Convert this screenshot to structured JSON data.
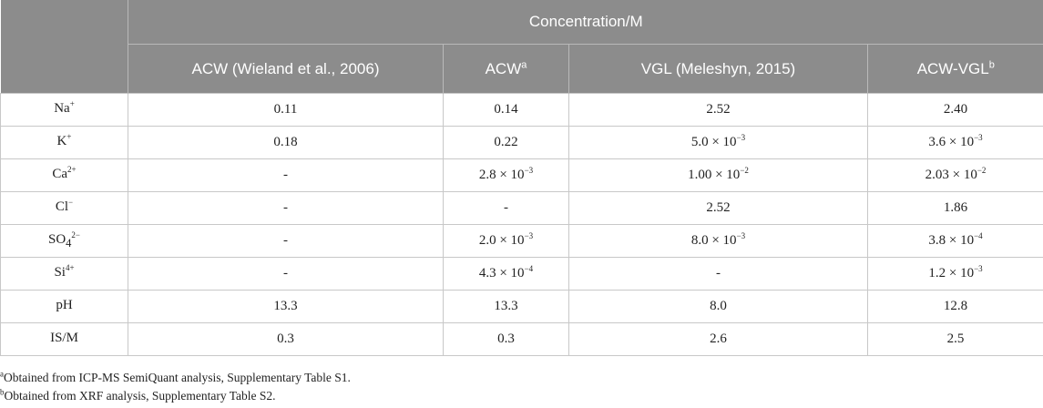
{
  "header": {
    "group_label": "Concentration/M",
    "columns": [
      {
        "label": "ACW (Wieland et al., 2006)",
        "sup": ""
      },
      {
        "label": "ACW",
        "sup": "a"
      },
      {
        "label": "VGL (Meleshyn, 2015)",
        "sup": ""
      },
      {
        "label": "ACW-VGL",
        "sup": "b"
      }
    ]
  },
  "rows": [
    {
      "stub": {
        "base": "Na",
        "sup": "+",
        "sub": "",
        "sup2": ""
      },
      "cells": [
        {
          "text": "0.11",
          "exp": ""
        },
        {
          "text": "0.14",
          "exp": ""
        },
        {
          "text": "2.52",
          "exp": ""
        },
        {
          "text": "2.40",
          "exp": ""
        }
      ]
    },
    {
      "stub": {
        "base": "K",
        "sup": "+",
        "sub": "",
        "sup2": ""
      },
      "cells": [
        {
          "text": "0.18",
          "exp": ""
        },
        {
          "text": "0.22",
          "exp": ""
        },
        {
          "text": "5.0 × 10",
          "exp": "−3"
        },
        {
          "text": "3.6 × 10",
          "exp": "−3"
        }
      ]
    },
    {
      "stub": {
        "base": "Ca",
        "sup": "2+",
        "sub": "",
        "sup2": ""
      },
      "cells": [
        {
          "text": "-",
          "exp": ""
        },
        {
          "text": "2.8 × 10",
          "exp": "−3"
        },
        {
          "text": "1.00 × 10",
          "exp": "−2"
        },
        {
          "text": "2.03 × 10",
          "exp": "−2"
        }
      ]
    },
    {
      "stub": {
        "base": "Cl",
        "sup": "−",
        "sub": "",
        "sup2": ""
      },
      "cells": [
        {
          "text": "-",
          "exp": ""
        },
        {
          "text": "-",
          "exp": ""
        },
        {
          "text": "2.52",
          "exp": ""
        },
        {
          "text": "1.86",
          "exp": ""
        }
      ]
    },
    {
      "stub": {
        "base": "SO",
        "sup": "",
        "sub": "4",
        "sup2": "2−"
      },
      "cells": [
        {
          "text": "-",
          "exp": ""
        },
        {
          "text": "2.0 × 10",
          "exp": "−3"
        },
        {
          "text": "8.0 × 10",
          "exp": "−3"
        },
        {
          "text": "3.8 × 10",
          "exp": "−4"
        }
      ]
    },
    {
      "stub": {
        "base": "Si",
        "sup": "4+",
        "sub": "",
        "sup2": ""
      },
      "cells": [
        {
          "text": "-",
          "exp": ""
        },
        {
          "text": "4.3 × 10",
          "exp": "−4"
        },
        {
          "text": "-",
          "exp": ""
        },
        {
          "text": "1.2 × 10",
          "exp": "−3"
        }
      ]
    },
    {
      "stub": {
        "base": "pH",
        "sup": "",
        "sub": "",
        "sup2": ""
      },
      "cells": [
        {
          "text": "13.3",
          "exp": ""
        },
        {
          "text": "13.3",
          "exp": ""
        },
        {
          "text": "8.0",
          "exp": ""
        },
        {
          "text": "12.8",
          "exp": ""
        }
      ]
    },
    {
      "stub": {
        "base": "IS/M",
        "sup": "",
        "sub": "",
        "sup2": ""
      },
      "cells": [
        {
          "text": "0.3",
          "exp": ""
        },
        {
          "text": "0.3",
          "exp": ""
        },
        {
          "text": "2.6",
          "exp": ""
        },
        {
          "text": "2.5",
          "exp": ""
        }
      ]
    }
  ],
  "footnotes": [
    {
      "mark": "a",
      "text": "Obtained from ICP-MS SemiQuant analysis, Supplementary Table S1."
    },
    {
      "mark": "b",
      "text": "Obtained from XRF analysis, Supplementary Table S2."
    }
  ]
}
